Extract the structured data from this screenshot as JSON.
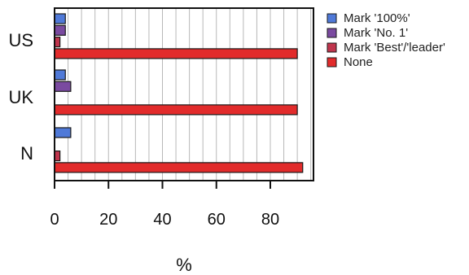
{
  "chart_data": {
    "type": "bar",
    "orientation": "horizontal",
    "categories": [
      "US",
      "UK",
      "N"
    ],
    "series": [
      {
        "name": "Mark '100%'",
        "color": "#4f79d8",
        "values": [
          4,
          4,
          6
        ]
      },
      {
        "name": "Mark 'No. 1'",
        "color": "#7a4aa0",
        "values": [
          4,
          6,
          0
        ]
      },
      {
        "name": "Mark 'Best'/'leader'",
        "color": "#c0354d",
        "values": [
          2,
          0,
          2
        ]
      },
      {
        "name": "None",
        "color": "#e22b2b",
        "values": [
          90,
          90,
          92
        ]
      }
    ],
    "xlabel": "%",
    "ylabel": "",
    "xlim": [
      0,
      96
    ],
    "xticks": [
      "0",
      "20",
      "40",
      "60",
      "80"
    ],
    "grid": "vertical",
    "legend_position": "right"
  }
}
